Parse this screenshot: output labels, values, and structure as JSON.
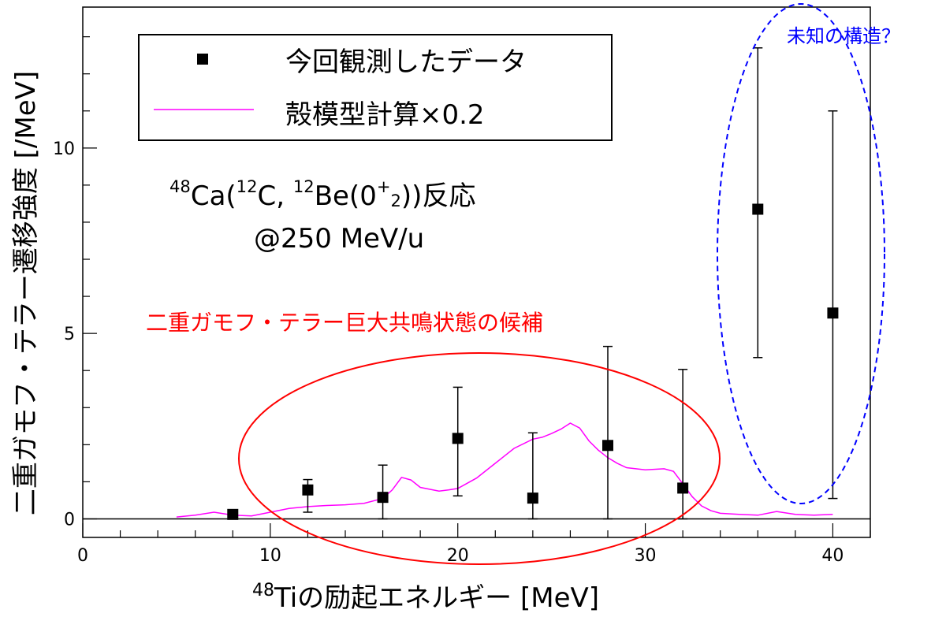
{
  "chart_data": {
    "type": "scatter",
    "xlabel_sup": "48",
    "xlabel_main": "Tiの励起エネルギー [MeV]",
    "ylabel": "二重ガモフ・テラー遷移強度 [/MeV]",
    "xlim": [
      0,
      42
    ],
    "ylim": [
      -0.5,
      13.8
    ],
    "x_ticks": [
      "0",
      "10",
      "20",
      "30",
      "40"
    ],
    "y_ticks": [
      "0",
      "5",
      "10"
    ],
    "legend_placement": "top-left",
    "series": [
      {
        "name": "今回観測したデータ",
        "kind": "points_with_error_bars",
        "color": "#000000",
        "points": [
          {
            "x": 8,
            "y": 0.12,
            "err_lo": 0.12,
            "err_hi": 0.12
          },
          {
            "x": 12,
            "y": 0.78,
            "err_lo": 0.6,
            "err_hi": 0.28
          },
          {
            "x": 16,
            "y": 0.58,
            "err_lo": 0.58,
            "err_hi": 0.87
          },
          {
            "x": 20,
            "y": 2.17,
            "err_lo": 1.55,
            "err_hi": 1.38
          },
          {
            "x": 24,
            "y": 0.56,
            "err_lo": 0.56,
            "err_hi": 1.76
          },
          {
            "x": 28,
            "y": 1.98,
            "err_lo": 1.98,
            "err_hi": 2.67
          },
          {
            "x": 32,
            "y": 0.83,
            "err_lo": 0.83,
            "err_hi": 3.2
          },
          {
            "x": 36,
            "y": 8.35,
            "err_lo": 4.0,
            "err_hi": 4.35
          },
          {
            "x": 40,
            "y": 5.55,
            "err_lo": 5.0,
            "err_hi": 5.45
          }
        ]
      },
      {
        "name": "殻模型計算×0.2",
        "kind": "line",
        "color": "#ff00ff",
        "x": [
          5,
          6,
          7,
          8,
          9,
          10,
          11,
          12,
          13,
          14,
          15,
          16,
          16.5,
          17,
          17.5,
          18,
          19,
          19.5,
          20,
          21,
          22,
          23,
          24,
          24.5,
          25,
          25.5,
          26,
          26.5,
          27,
          27.5,
          28,
          28.5,
          29,
          30,
          31,
          31.5,
          32,
          32.5,
          33,
          33.5,
          34,
          35,
          36,
          37,
          38,
          39,
          40
        ],
        "y": [
          0.05,
          0.1,
          0.18,
          0.1,
          0.08,
          0.18,
          0.28,
          0.33,
          0.36,
          0.38,
          0.42,
          0.55,
          0.78,
          1.12,
          1.05,
          0.85,
          0.75,
          0.78,
          0.82,
          1.1,
          1.5,
          1.9,
          2.15,
          2.2,
          2.3,
          2.42,
          2.58,
          2.45,
          2.1,
          1.85,
          1.65,
          1.5,
          1.38,
          1.32,
          1.35,
          1.28,
          0.95,
          0.6,
          0.35,
          0.22,
          0.15,
          0.12,
          0.1,
          0.2,
          0.12,
          0.1,
          0.12
        ]
      }
    ],
    "annotations": {
      "candidate_region": "二重ガモフ・テラー巨大共鳴状態の候補",
      "unknown_region": "未知の構造？",
      "reaction_sup1": "48",
      "reaction_ca": "Ca(",
      "reaction_sup2": "12",
      "reaction_c": "C, ",
      "reaction_sup3": "12",
      "reaction_be": "Be(0",
      "reaction_sup4": "+",
      "reaction_sub": "2",
      "reaction_end": "))反応",
      "energy": "@250 MeV/u"
    },
    "colors": {
      "data": "#000000",
      "calculation": "#ff00ff",
      "candidate_ellipse": "#ff0000",
      "unknown_ellipse": "#0000ff"
    }
  }
}
